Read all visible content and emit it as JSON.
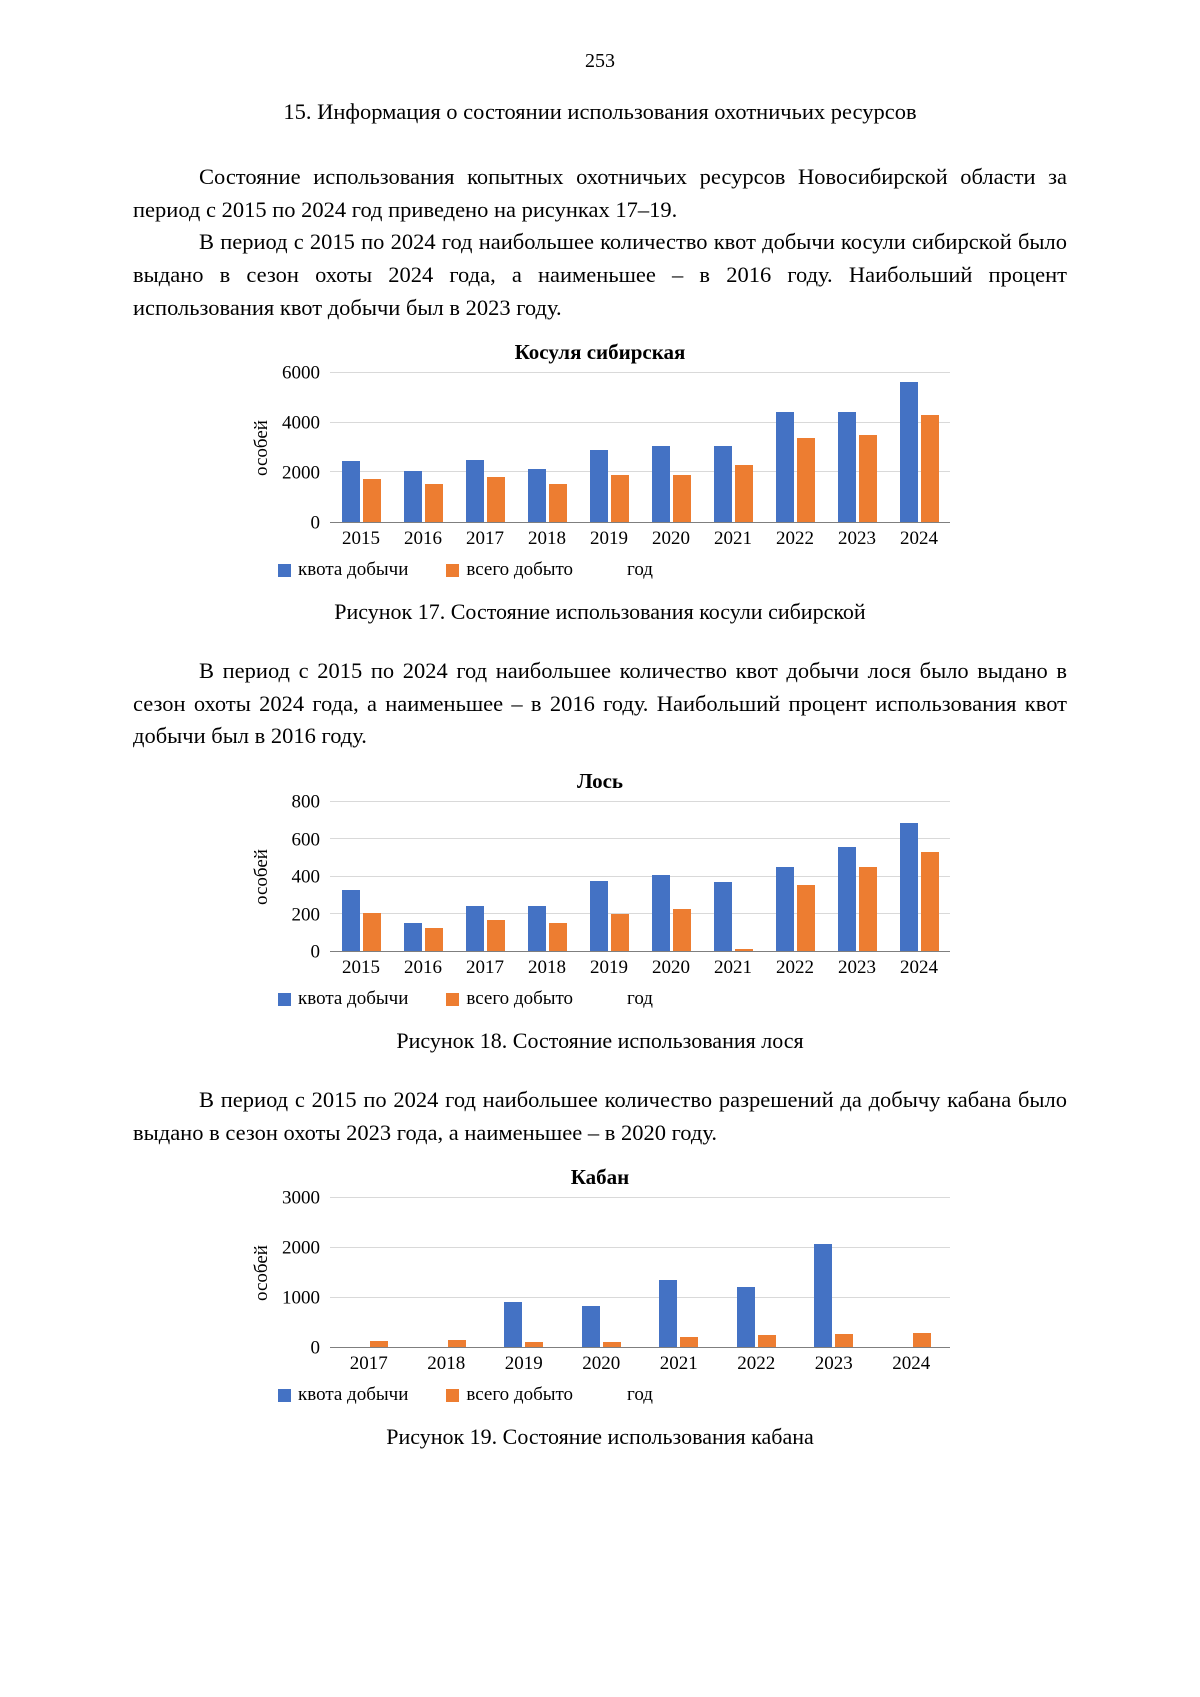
{
  "page": {
    "number": "253",
    "title": "15. Информация о состоянии использования охотничьих ресурсов",
    "paragraphs": {
      "p1": "Состояние использования копытных охотничьих ресурсов Новосибирской области за период с 2015 по 2024 год приведено на рисунках 17–19.",
      "p2": "В период с 2015 по 2024 год наибольшее количество квот добычи косули сибирской было выдано в сезон охоты 2024 года, а наименьшее – в 2016 году. Наибольший процент использования квот добычи был в 2023 году.",
      "p3": "В период с 2015 по 2024 год наибольшее количество квот добычи лося было выдано в сезон охоты 2024 года, а наименьшее – в 2016 году. Наибольший процент использования квот добычи был в 2016 году.",
      "p4": "В период с 2015 по 2024 год наибольшее количество разрешений да добычу кабана было выдано в сезон охоты 2023 года, а наименьшее – в 2020 году."
    }
  },
  "colors": {
    "quota": "#4472C4",
    "harvest": "#ED7D31"
  },
  "chart_data": [
    {
      "type": "bar",
      "title": "Косуля сибирская",
      "categories": [
        "2015",
        "2016",
        "2017",
        "2018",
        "2019",
        "2020",
        "2021",
        "2022",
        "2023",
        "2024"
      ],
      "series": [
        {
          "name": "квота добычи",
          "color": "#4472C4",
          "values": [
            2450,
            2050,
            2500,
            2150,
            2900,
            3050,
            3050,
            4450,
            4450,
            5650
          ]
        },
        {
          "name": "всего добыто",
          "color": "#ED7D31",
          "values": [
            1750,
            1550,
            1800,
            1550,
            1900,
            1900,
            2300,
            3400,
            3500,
            4300
          ]
        }
      ],
      "ylabel": "особей",
      "xlabel": "год",
      "ylim": [
        0,
        6000
      ],
      "yticks": [
        0,
        2000,
        4000,
        6000
      ],
      "grid": true,
      "legend_position": "bottom",
      "caption": "Рисунок 17. Состояние использования косули сибирской"
    },
    {
      "type": "bar",
      "title": "Лось",
      "categories": [
        "2015",
        "2016",
        "2017",
        "2018",
        "2019",
        "2020",
        "2021",
        "2022",
        "2023",
        "2024"
      ],
      "series": [
        {
          "name": "квота добычи",
          "color": "#4472C4",
          "values": [
            325,
            150,
            240,
            240,
            375,
            410,
            370,
            450,
            560,
            685
          ]
        },
        {
          "name": "всего добыто",
          "color": "#ED7D31",
          "values": [
            205,
            125,
            165,
            150,
            200,
            225,
            10,
            355,
            450,
            530
          ]
        }
      ],
      "ylabel": "особей",
      "xlabel": "год",
      "ylim": [
        0,
        800
      ],
      "yticks": [
        0,
        200,
        400,
        600,
        800
      ],
      "grid": true,
      "legend_position": "bottom",
      "caption": "Рисунок 18. Состояние использования лося"
    },
    {
      "type": "bar",
      "title": "Кабан",
      "categories": [
        "2017",
        "2018",
        "2019",
        "2020",
        "2021",
        "2022",
        "2023",
        "2024"
      ],
      "series": [
        {
          "name": "квота добычи",
          "color": "#4472C4",
          "values": [
            0,
            0,
            920,
            840,
            1350,
            1220,
            2070,
            0
          ]
        },
        {
          "name": "всего добыто",
          "color": "#ED7D31",
          "values": [
            130,
            150,
            100,
            110,
            200,
            240,
            260,
            290
          ]
        }
      ],
      "ylabel": "особей",
      "xlabel": "год",
      "ylim": [
        0,
        3000
      ],
      "yticks": [
        0,
        1000,
        2000,
        3000
      ],
      "grid": true,
      "legend_position": "bottom",
      "caption": "Рисунок 19. Состояние использования кабана"
    }
  ]
}
